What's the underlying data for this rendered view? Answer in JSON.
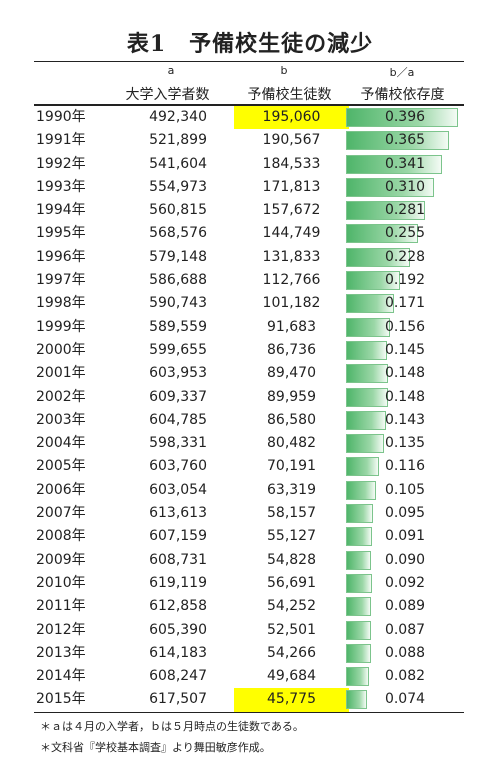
{
  "title": "表1　予備校生徒の減少",
  "headers": {
    "a_letter": "a",
    "b_letter": "b",
    "ratio_letter": "b／a",
    "a_label": "大学入学者数",
    "b_label": "予備校生徒数",
    "ratio_label": "予備校依存度"
  },
  "rows": [
    {
      "year": "1990年",
      "a": "492,340",
      "b": "195,060",
      "ratio": "0.396",
      "highlight": true
    },
    {
      "year": "1991年",
      "a": "521,899",
      "b": "190,567",
      "ratio": "0.365"
    },
    {
      "year": "1992年",
      "a": "541,604",
      "b": "184,533",
      "ratio": "0.341"
    },
    {
      "year": "1993年",
      "a": "554,973",
      "b": "171,813",
      "ratio": "0.310"
    },
    {
      "year": "1994年",
      "a": "560,815",
      "b": "157,672",
      "ratio": "0.281"
    },
    {
      "year": "1995年",
      "a": "568,576",
      "b": "144,749",
      "ratio": "0.255"
    },
    {
      "year": "1996年",
      "a": "579,148",
      "b": "131,833",
      "ratio": "0.228"
    },
    {
      "year": "1997年",
      "a": "586,688",
      "b": "112,766",
      "ratio": "0.192"
    },
    {
      "year": "1998年",
      "a": "590,743",
      "b": "101,182",
      "ratio": "0.171"
    },
    {
      "year": "1999年",
      "a": "589,559",
      "b": "91,683",
      "ratio": "0.156"
    },
    {
      "year": "2000年",
      "a": "599,655",
      "b": "86,736",
      "ratio": "0.145"
    },
    {
      "year": "2001年",
      "a": "603,953",
      "b": "89,470",
      "ratio": "0.148"
    },
    {
      "year": "2002年",
      "a": "609,337",
      "b": "89,959",
      "ratio": "0.148"
    },
    {
      "year": "2003年",
      "a": "604,785",
      "b": "86,580",
      "ratio": "0.143"
    },
    {
      "year": "2004年",
      "a": "598,331",
      "b": "80,482",
      "ratio": "0.135"
    },
    {
      "year": "2005年",
      "a": "603,760",
      "b": "70,191",
      "ratio": "0.116"
    },
    {
      "year": "2006年",
      "a": "603,054",
      "b": "63,319",
      "ratio": "0.105"
    },
    {
      "year": "2007年",
      "a": "613,613",
      "b": "58,157",
      "ratio": "0.095"
    },
    {
      "year": "2008年",
      "a": "607,159",
      "b": "55,127",
      "ratio": "0.091"
    },
    {
      "year": "2009年",
      "a": "608,731",
      "b": "54,828",
      "ratio": "0.090"
    },
    {
      "year": "2010年",
      "a": "619,119",
      "b": "56,691",
      "ratio": "0.092"
    },
    {
      "year": "2011年",
      "a": "612,858",
      "b": "54,252",
      "ratio": "0.089"
    },
    {
      "year": "2012年",
      "a": "605,390",
      "b": "52,501",
      "ratio": "0.087"
    },
    {
      "year": "2013年",
      "a": "614,183",
      "b": "54,266",
      "ratio": "0.088"
    },
    {
      "year": "2014年",
      "a": "608,247",
      "b": "49,684",
      "ratio": "0.082"
    },
    {
      "year": "2015年",
      "a": "617,507",
      "b": "45,775",
      "ratio": "0.074",
      "highlight": true
    }
  ],
  "notes": [
    "＊ａは４月の入学者，ｂは５月時点の生徒数である。",
    "＊文科省『学校基本調査』より舞田敏彦作成。"
  ],
  "colors": {
    "highlight": "#ffff00",
    "bar_start": "#4fb56a",
    "bar_end": "#f4fbf5"
  }
}
